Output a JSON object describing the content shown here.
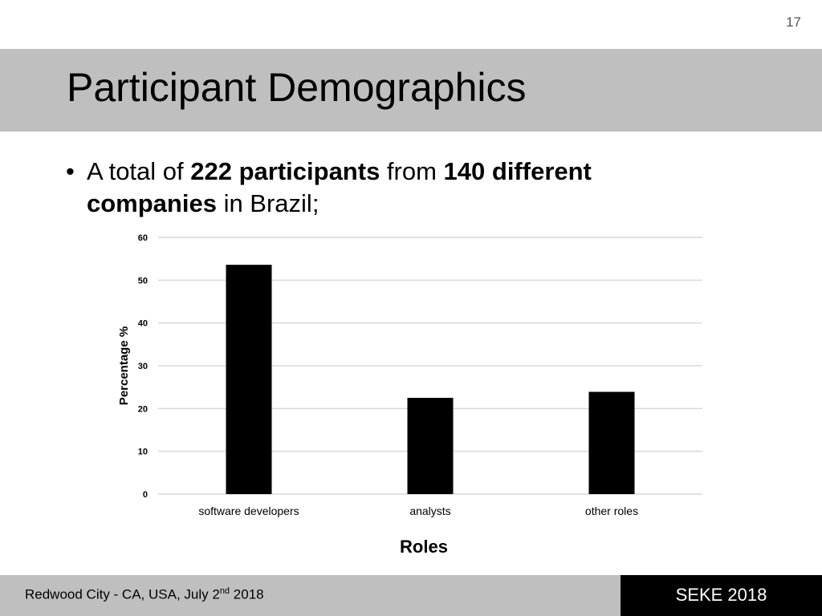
{
  "slide": {
    "page_number": "17",
    "title": "Participant Demographics",
    "bullet": {
      "marker": "•",
      "parts": [
        {
          "text": "A total of ",
          "bold": false
        },
        {
          "text": "222 participants",
          "bold": true
        },
        {
          "text": " from ",
          "bold": false
        },
        {
          "text": "140 different companies",
          "bold": true
        },
        {
          "text": " in Brazil;",
          "bold": false
        }
      ]
    },
    "footer": {
      "location_prefix": "Redwood City - CA, USA, July 2",
      "location_sup": "nd",
      "location_suffix": " 2018",
      "conference": "SEKE 2018"
    }
  },
  "chart_data": {
    "type": "bar",
    "title": "",
    "categories": [
      "software developers",
      "analysts",
      "other roles"
    ],
    "values": [
      53.6,
      22.5,
      23.9
    ],
    "xlabel": "Roles",
    "ylabel": "Percentage %",
    "ylim": [
      0,
      60
    ],
    "yticks": [
      0,
      10,
      20,
      30,
      40,
      50,
      60
    ],
    "grid": true,
    "legend": "none",
    "bar_color": "#000000",
    "grid_color": "#d9d9d9"
  }
}
